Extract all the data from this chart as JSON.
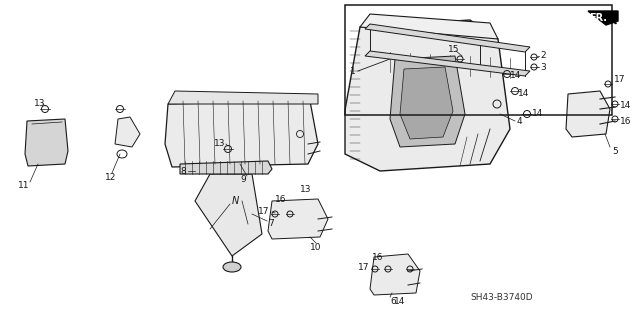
{
  "bg_color": "#ffffff",
  "diagram_code": "SH43-B3740D",
  "fig_width": 6.4,
  "fig_height": 3.19,
  "dpi": 100,
  "line_color": "#1a1a1a",
  "gray_fill": "#d8d8d8",
  "light_gray": "#ebebeb",
  "mid_gray": "#b0b0b0"
}
